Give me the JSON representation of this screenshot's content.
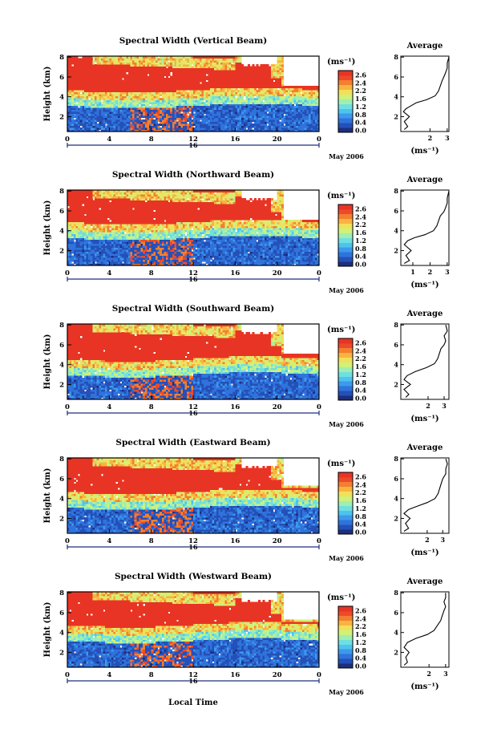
{
  "chart_data": [
    {
      "type": "heatmap",
      "title": "Spectral Width (Vertical Beam)",
      "ylabel": "Height (km)",
      "x_ticks": [
        "0",
        "4",
        "8",
        "12",
        "16",
        "20",
        "0"
      ],
      "y_ticks": [
        "2",
        "4",
        "6",
        "8"
      ],
      "xlim": [
        0,
        24
      ],
      "ylim": [
        0.5,
        8.1
      ],
      "date_label": "16",
      "month_label": "May 2006",
      "colorbar": {
        "unit": "(ms⁻¹)",
        "ticks": [
          "2.6",
          "2.4",
          "2.2",
          "1.6",
          "1.2",
          "0.8",
          "0.4",
          "0.0"
        ],
        "range": [
          0.0,
          2.8
        ]
      },
      "cloud": {
        "rise": 4.2,
        "low": 3.1
      },
      "average": {
        "title": "Average",
        "xlabel": "(ms⁻¹)",
        "x_ticks": [
          "2",
          "3"
        ],
        "y_ticks": [
          "2",
          "4",
          "6",
          "8"
        ],
        "xlim": [
          0.3,
          3.1
        ],
        "profile": [
          [
            0.5,
            0.7
          ],
          [
            0.7,
            1.0
          ],
          [
            0.5,
            1.5
          ],
          [
            0.8,
            2.0
          ],
          [
            0.45,
            2.5
          ],
          [
            0.6,
            2.8
          ],
          [
            0.9,
            3.1
          ],
          [
            1.2,
            3.4
          ],
          [
            1.8,
            3.7
          ],
          [
            2.3,
            4.1
          ],
          [
            2.5,
            4.6
          ],
          [
            2.6,
            5.1
          ],
          [
            2.7,
            5.6
          ],
          [
            2.8,
            6.0
          ],
          [
            2.9,
            6.4
          ],
          [
            3.0,
            6.9
          ],
          [
            3.0,
            7.4
          ],
          [
            3.1,
            8.0
          ]
        ]
      }
    },
    {
      "type": "heatmap",
      "title": "Spectral Width (Northward Beam)",
      "ylabel": "Height (km)",
      "x_ticks": [
        "0",
        "4",
        "8",
        "12",
        "16",
        "20",
        "0"
      ],
      "y_ticks": [
        "2",
        "4",
        "6",
        "8"
      ],
      "xlim": [
        0,
        24
      ],
      "ylim": [
        0.5,
        8.1
      ],
      "date_label": "16",
      "month_label": "May 2006",
      "colorbar": {
        "unit": "(ms⁻¹)",
        "ticks": [
          "2.6",
          "2.4",
          "2.2",
          "1.6",
          "1.2",
          "0.8",
          "0.4",
          "0.0"
        ],
        "range": [
          0.0,
          2.8
        ]
      },
      "cloud": {
        "rise": 4.1,
        "low": 3.3
      },
      "average": {
        "title": "Average",
        "xlabel": "(ms⁻¹)",
        "x_ticks": [
          "1",
          "2",
          "3"
        ],
        "y_ticks": [
          "2",
          "4",
          "6",
          "8"
        ],
        "xlim": [
          0.3,
          3.1
        ],
        "profile": [
          [
            0.5,
            0.7
          ],
          [
            0.8,
            1.0
          ],
          [
            0.6,
            1.5
          ],
          [
            0.9,
            2.0
          ],
          [
            0.5,
            2.6
          ],
          [
            0.7,
            3.0
          ],
          [
            1.1,
            3.3
          ],
          [
            1.7,
            3.6
          ],
          [
            2.2,
            4.0
          ],
          [
            2.4,
            4.5
          ],
          [
            2.5,
            5.0
          ],
          [
            2.6,
            5.5
          ],
          [
            2.8,
            5.9
          ],
          [
            2.9,
            6.3
          ],
          [
            3.0,
            6.8
          ],
          [
            3.0,
            7.3
          ],
          [
            3.1,
            8.0
          ]
        ]
      }
    },
    {
      "type": "heatmap",
      "title": "Spectral Width (Southward Beam)",
      "ylabel": "Height (km)",
      "x_ticks": [
        "0",
        "4",
        "8",
        "12",
        "16",
        "20",
        "0"
      ],
      "y_ticks": [
        "2",
        "4",
        "6",
        "8"
      ],
      "xlim": [
        0,
        24
      ],
      "ylim": [
        0.5,
        8.1
      ],
      "date_label": "16",
      "month_label": "May 2006",
      "colorbar": {
        "unit": "(ms⁻¹)",
        "ticks": [
          "2.6",
          "2.4",
          "2.2",
          "1.6",
          "1.2",
          "0.8",
          "0.4",
          "0.0"
        ],
        "range": [
          0.0,
          2.8
        ]
      },
      "cloud": {
        "rise": 4.2,
        "low": 3.0
      },
      "average": {
        "title": "Average",
        "xlabel": "(ms⁻¹)",
        "x_ticks": [
          "2",
          "3"
        ],
        "y_ticks": [
          "2",
          "4",
          "6",
          "8"
        ],
        "xlim": [
          0.3,
          3.3
        ],
        "profile": [
          [
            0.6,
            0.7
          ],
          [
            0.8,
            1.0
          ],
          [
            0.5,
            1.5
          ],
          [
            0.9,
            2.0
          ],
          [
            0.5,
            2.5
          ],
          [
            0.7,
            2.9
          ],
          [
            1.2,
            3.3
          ],
          [
            1.9,
            3.7
          ],
          [
            2.4,
            4.1
          ],
          [
            2.6,
            4.6
          ],
          [
            2.7,
            5.1
          ],
          [
            2.8,
            5.6
          ],
          [
            3.0,
            6.0
          ],
          [
            3.1,
            6.4
          ],
          [
            3.0,
            6.9
          ],
          [
            3.2,
            7.4
          ],
          [
            3.1,
            8.0
          ]
        ]
      }
    },
    {
      "type": "heatmap",
      "title": "Spectral Width (Eastward Beam)",
      "ylabel": "Height (km)",
      "x_ticks": [
        "0",
        "4",
        "8",
        "12",
        "16",
        "20",
        "0"
      ],
      "y_ticks": [
        "2",
        "4",
        "6",
        "8"
      ],
      "xlim": [
        0,
        24
      ],
      "ylim": [
        0.5,
        8.1
      ],
      "date_label": "16",
      "month_label": "May 2006",
      "colorbar": {
        "unit": "(ms⁻¹)",
        "ticks": [
          "2.6",
          "2.4",
          "2.2",
          "1.6",
          "1.2",
          "0.8",
          "0.4",
          "0.0"
        ],
        "range": [
          0.0,
          2.8
        ]
      },
      "cloud": {
        "rise": 4.3,
        "low": 3.1
      },
      "average": {
        "title": "Average",
        "xlabel": "(ms⁻¹)",
        "x_ticks": [
          "2",
          "3"
        ],
        "y_ticks": [
          "2",
          "4",
          "6",
          "8"
        ],
        "xlim": [
          0.3,
          3.4
        ],
        "profile": [
          [
            0.5,
            0.7
          ],
          [
            0.8,
            1.0
          ],
          [
            0.6,
            1.5
          ],
          [
            0.9,
            2.0
          ],
          [
            0.5,
            2.5
          ],
          [
            0.8,
            2.9
          ],
          [
            1.3,
            3.2
          ],
          [
            2.0,
            3.6
          ],
          [
            2.5,
            4.0
          ],
          [
            2.7,
            4.5
          ],
          [
            2.8,
            5.0
          ],
          [
            2.9,
            5.5
          ],
          [
            3.0,
            6.0
          ],
          [
            3.2,
            6.5
          ],
          [
            3.2,
            7.0
          ],
          [
            3.3,
            7.5
          ],
          [
            3.2,
            8.0
          ]
        ]
      }
    },
    {
      "type": "heatmap",
      "title": "Spectral Width (Westward Beam)",
      "ylabel": "Height (km)",
      "x_ticks": [
        "0",
        "4",
        "8",
        "12",
        "16",
        "20",
        "0"
      ],
      "y_ticks": [
        "2",
        "4",
        "6",
        "8"
      ],
      "xlim": [
        0,
        24
      ],
      "ylim": [
        0.5,
        8.1
      ],
      "date_label": "16",
      "month_label": "May 2006",
      "colorbar": {
        "unit": "(ms⁻¹)",
        "ticks": [
          "2.6",
          "2.4",
          "2.2",
          "1.6",
          "1.2",
          "0.8",
          "0.4",
          "0.0"
        ],
        "range": [
          0.0,
          2.8
        ]
      },
      "cloud": {
        "rise": 4.3,
        "low": 3.2
      },
      "average": {
        "title": "Average",
        "xlabel": "(ms⁻¹)",
        "x_ticks": [
          "2",
          "3"
        ],
        "y_ticks": [
          "2",
          "4",
          "6",
          "8"
        ],
        "xlim": [
          0.3,
          3.2
        ],
        "profile": [
          [
            0.5,
            0.7
          ],
          [
            0.7,
            1.0
          ],
          [
            0.6,
            1.5
          ],
          [
            0.8,
            2.0
          ],
          [
            0.5,
            2.5
          ],
          [
            0.7,
            3.0
          ],
          [
            1.2,
            3.4
          ],
          [
            1.9,
            3.8
          ],
          [
            2.3,
            4.2
          ],
          [
            2.5,
            4.7
          ],
          [
            2.7,
            5.2
          ],
          [
            2.8,
            5.7
          ],
          [
            2.9,
            6.2
          ],
          [
            3.0,
            6.6
          ],
          [
            2.9,
            7.1
          ],
          [
            3.0,
            7.5
          ],
          [
            3.0,
            8.0
          ]
        ]
      }
    }
  ],
  "xlabel": "Local Time"
}
